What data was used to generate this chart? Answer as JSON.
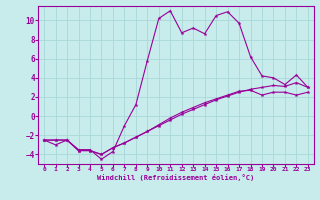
{
  "xlabel": "Windchill (Refroidissement éolien,°C)",
  "bg_color": "#c8ecec",
  "line_color": "#990099",
  "grid_color": "#a8d8d8",
  "xlim": [
    -0.5,
    23.5
  ],
  "ylim": [
    -5.0,
    11.5
  ],
  "yticks": [
    -4,
    -2,
    0,
    2,
    4,
    6,
    8,
    10
  ],
  "xticks": [
    0,
    1,
    2,
    3,
    4,
    5,
    6,
    7,
    8,
    9,
    10,
    11,
    12,
    13,
    14,
    15,
    16,
    17,
    18,
    19,
    20,
    21,
    22,
    23
  ],
  "line1_x": [
    0,
    1,
    2,
    3,
    4,
    5,
    6,
    7,
    8,
    9,
    10,
    11,
    12,
    13,
    14,
    15,
    16,
    17,
    18,
    19,
    20,
    21,
    22,
    23
  ],
  "line1_y": [
    -2.5,
    -3.0,
    -2.5,
    -3.5,
    -3.5,
    -4.5,
    -3.7,
    -1.0,
    1.2,
    5.8,
    10.2,
    11.0,
    8.7,
    9.2,
    8.6,
    10.5,
    10.9,
    9.7,
    6.2,
    4.2,
    4.0,
    3.3,
    4.3,
    3.0
  ],
  "line2_x": [
    0,
    1,
    2,
    3,
    4,
    5,
    6,
    7,
    8,
    9,
    10,
    11,
    12,
    13,
    14,
    15,
    16,
    17,
    18,
    19,
    20,
    21,
    22,
    23
  ],
  "line2_y": [
    -2.5,
    -2.5,
    -2.5,
    -3.6,
    -3.6,
    -4.0,
    -3.3,
    -2.8,
    -2.2,
    -1.6,
    -1.0,
    -0.4,
    0.2,
    0.7,
    1.2,
    1.7,
    2.1,
    2.5,
    2.8,
    3.0,
    3.2,
    3.1,
    3.5,
    3.0
  ],
  "line3_x": [
    0,
    1,
    2,
    3,
    4,
    5,
    6,
    7,
    8,
    9,
    10,
    11,
    12,
    13,
    14,
    15,
    16,
    17,
    18,
    19,
    20,
    21,
    22,
    23
  ],
  "line3_y": [
    -2.5,
    -2.5,
    -2.5,
    -3.6,
    -3.6,
    -4.0,
    -3.3,
    -2.8,
    -2.2,
    -1.6,
    -0.9,
    -0.2,
    0.4,
    0.9,
    1.4,
    1.8,
    2.2,
    2.6,
    2.7,
    2.2,
    2.5,
    2.5,
    2.2,
    2.5
  ]
}
